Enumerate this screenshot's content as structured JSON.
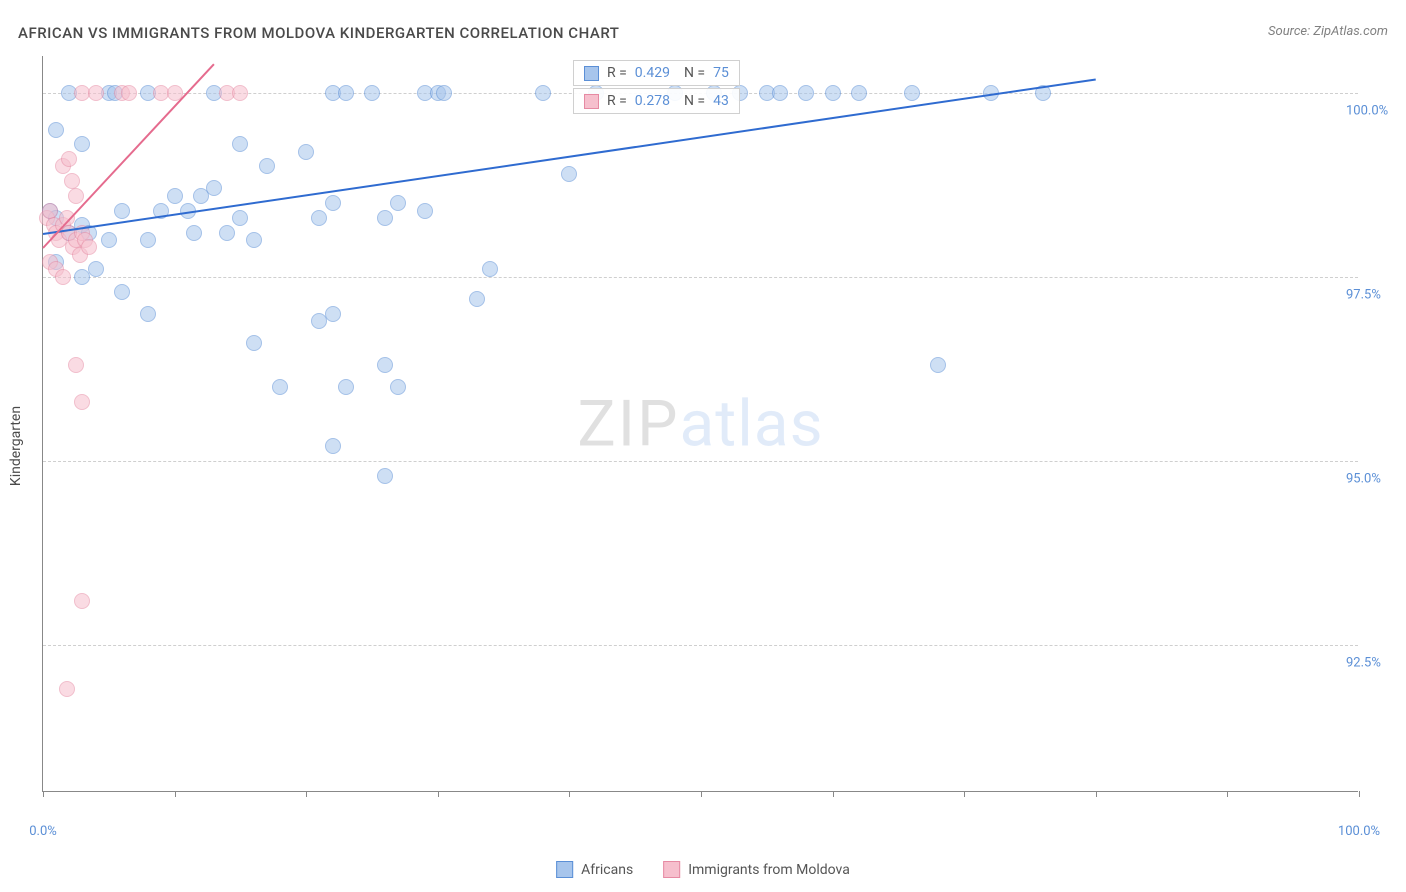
{
  "title": "AFRICAN VS IMMIGRANTS FROM MOLDOVA KINDERGARTEN CORRELATION CHART",
  "source_label": "Source: ZipAtlas.com",
  "y_axis_title": "Kindergarten",
  "watermark": {
    "part1": "ZIP",
    "part2": "atlas"
  },
  "chart": {
    "type": "scatter",
    "xlim": [
      0,
      100
    ],
    "ylim": [
      90.5,
      100.5
    ],
    "y_ticks": [
      92.5,
      95.0,
      97.5,
      100.0
    ],
    "y_tick_labels": [
      "92.5%",
      "95.0%",
      "97.5%",
      "100.0%"
    ],
    "x_ticks": [
      0,
      10,
      20,
      30,
      40,
      50,
      60,
      70,
      80,
      90,
      100
    ],
    "x_tick_labels_shown": {
      "0": "0.0%",
      "100": "100.0%"
    },
    "background_color": "#ffffff",
    "grid_color": "#cfcfcf",
    "axis_color": "#888888",
    "tick_label_color": "#5b8fd6",
    "marker_size": 16,
    "marker_opacity": 0.55,
    "series": [
      {
        "id": "africans",
        "label": "Africans",
        "fill_color": "#a7c5ec",
        "stroke_color": "#5b8fd6",
        "trend_color": "#2f6bd0",
        "R": "0.429",
        "N": "75",
        "trend": {
          "x1": 0,
          "y1": 98.1,
          "x2": 80,
          "y2": 100.2
        },
        "points": [
          [
            2,
            100
          ],
          [
            5,
            100
          ],
          [
            5.5,
            100
          ],
          [
            8,
            100
          ],
          [
            13,
            100
          ],
          [
            22,
            100
          ],
          [
            23,
            100
          ],
          [
            25,
            100
          ],
          [
            29,
            100
          ],
          [
            30,
            100
          ],
          [
            30.5,
            100
          ],
          [
            38,
            100
          ],
          [
            42,
            100
          ],
          [
            48,
            100
          ],
          [
            51,
            100
          ],
          [
            53,
            100
          ],
          [
            55,
            100
          ],
          [
            56,
            100
          ],
          [
            58,
            100
          ],
          [
            60,
            100
          ],
          [
            62,
            100
          ],
          [
            66,
            100
          ],
          [
            72,
            100
          ],
          [
            76,
            100
          ],
          [
            1,
            99.5
          ],
          [
            3,
            99.3
          ],
          [
            13,
            98.7
          ],
          [
            15,
            99.3
          ],
          [
            17,
            99.0
          ],
          [
            20,
            99.2
          ],
          [
            0.5,
            98.4
          ],
          [
            1,
            98.3
          ],
          [
            2,
            98.1
          ],
          [
            3,
            98.2
          ],
          [
            3.5,
            98.1
          ],
          [
            5,
            98.0
          ],
          [
            6,
            98.4
          ],
          [
            8,
            98.0
          ],
          [
            9,
            98.4
          ],
          [
            10,
            98.6
          ],
          [
            11,
            98.4
          ],
          [
            11.5,
            98.1
          ],
          [
            12,
            98.6
          ],
          [
            14,
            98.1
          ],
          [
            15,
            98.3
          ],
          [
            16,
            98.0
          ],
          [
            21,
            98.3
          ],
          [
            22,
            98.5
          ],
          [
            26,
            98.3
          ],
          [
            27,
            98.5
          ],
          [
            29,
            98.4
          ],
          [
            40,
            98.9
          ],
          [
            1,
            97.7
          ],
          [
            3,
            97.5
          ],
          [
            4,
            97.6
          ],
          [
            6,
            97.3
          ],
          [
            8,
            97.0
          ],
          [
            16,
            96.6
          ],
          [
            21,
            96.9
          ],
          [
            22,
            97.0
          ],
          [
            26,
            96.3
          ],
          [
            33,
            97.2
          ],
          [
            18,
            96.0
          ],
          [
            23,
            96.0
          ],
          [
            27,
            96.0
          ],
          [
            34,
            97.6
          ],
          [
            22,
            95.2
          ],
          [
            26,
            94.8
          ],
          [
            68,
            96.3
          ]
        ]
      },
      {
        "id": "moldova",
        "label": "Immigrants from Moldova",
        "fill_color": "#f6bfcd",
        "stroke_color": "#e68aa3",
        "trend_color": "#e56b8e",
        "R": "0.278",
        "N": "43",
        "trend": {
          "x1": 0,
          "y1": 97.9,
          "x2": 13,
          "y2": 100.4
        },
        "points": [
          [
            3,
            100
          ],
          [
            4,
            100
          ],
          [
            6,
            100
          ],
          [
            6.5,
            100
          ],
          [
            9,
            100
          ],
          [
            10,
            100
          ],
          [
            14,
            100
          ],
          [
            15,
            100
          ],
          [
            1.5,
            99.0
          ],
          [
            2,
            99.1
          ],
          [
            2.2,
            98.8
          ],
          [
            2.5,
            98.6
          ],
          [
            0.3,
            98.3
          ],
          [
            0.5,
            98.4
          ],
          [
            0.8,
            98.2
          ],
          [
            1,
            98.1
          ],
          [
            1.2,
            98.0
          ],
          [
            1.5,
            98.2
          ],
          [
            1.8,
            98.3
          ],
          [
            2,
            98.1
          ],
          [
            2.3,
            97.9
          ],
          [
            2.5,
            98.0
          ],
          [
            2.8,
            97.8
          ],
          [
            3,
            98.1
          ],
          [
            3.2,
            98.0
          ],
          [
            3.5,
            97.9
          ],
          [
            0.5,
            97.7
          ],
          [
            1,
            97.6
          ],
          [
            1.5,
            97.5
          ],
          [
            2.5,
            96.3
          ],
          [
            3,
            95.8
          ],
          [
            3,
            93.1
          ],
          [
            1.8,
            91.9
          ]
        ]
      }
    ]
  },
  "stats_box": {
    "r_label": "R =",
    "n_label": "N ="
  },
  "legend": {
    "items": [
      "africans",
      "moldova"
    ]
  }
}
